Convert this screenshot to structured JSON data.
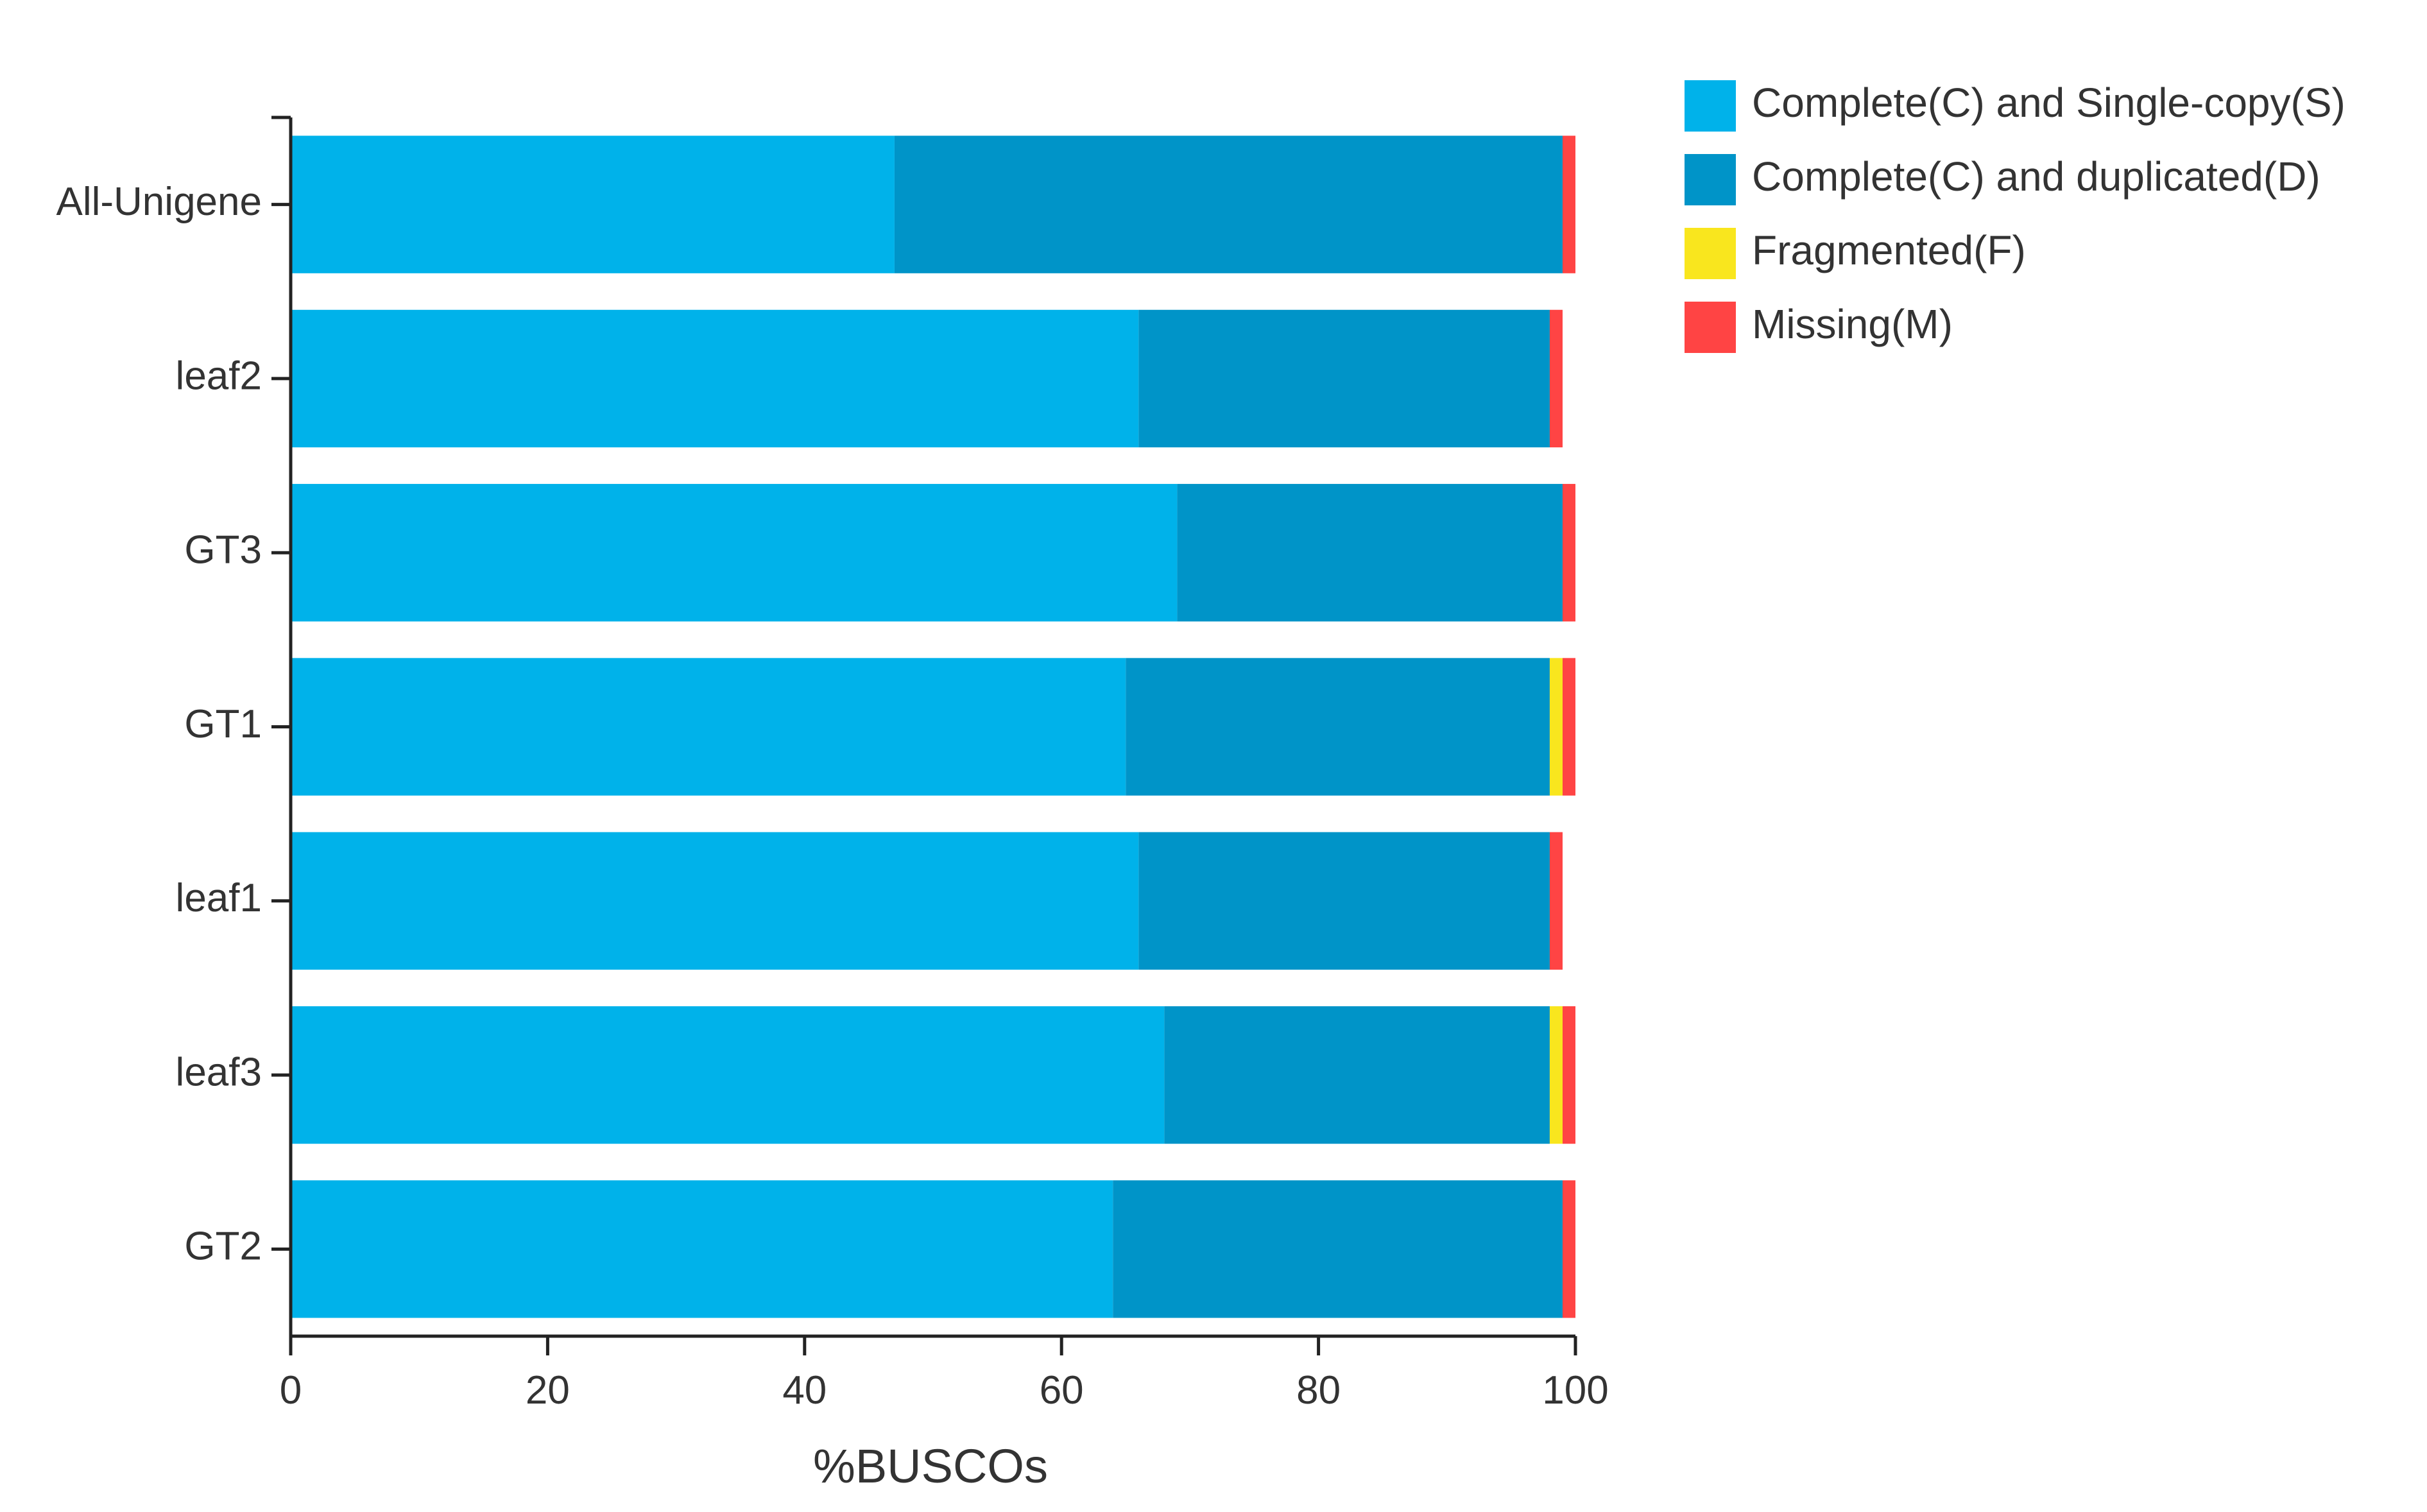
{
  "chart_data": {
    "type": "bar",
    "orientation": "horizontal",
    "stacked": true,
    "categories": [
      "All-Unigene",
      "leaf2",
      "GT3",
      "GT1",
      "leaf1",
      "leaf3",
      "GT2"
    ],
    "series": [
      {
        "name": "Complete(C) and Single-copy(S)",
        "color": "#00b2ea",
        "values": [
          47,
          66,
          69,
          65,
          66,
          68,
          64
        ]
      },
      {
        "name": "Complete(C) and duplicated(D)",
        "color": "#0094c8",
        "values": [
          52,
          32,
          30,
          33,
          32,
          30,
          35
        ]
      },
      {
        "name": "Fragmented(F)",
        "color": "#f9e61e",
        "values": [
          0,
          0,
          0,
          1,
          0,
          1,
          0
        ]
      },
      {
        "name": "Missing(M)",
        "color": "#ff4444",
        "values": [
          1,
          1,
          1,
          1,
          1,
          1,
          1
        ]
      }
    ],
    "xlabel": "%BUSCOs",
    "ylabel": "",
    "xlim": [
      0,
      100
    ],
    "xticks": [
      0,
      20,
      40,
      60,
      80,
      100
    ],
    "legend_position": "top-right",
    "grid": false
  }
}
